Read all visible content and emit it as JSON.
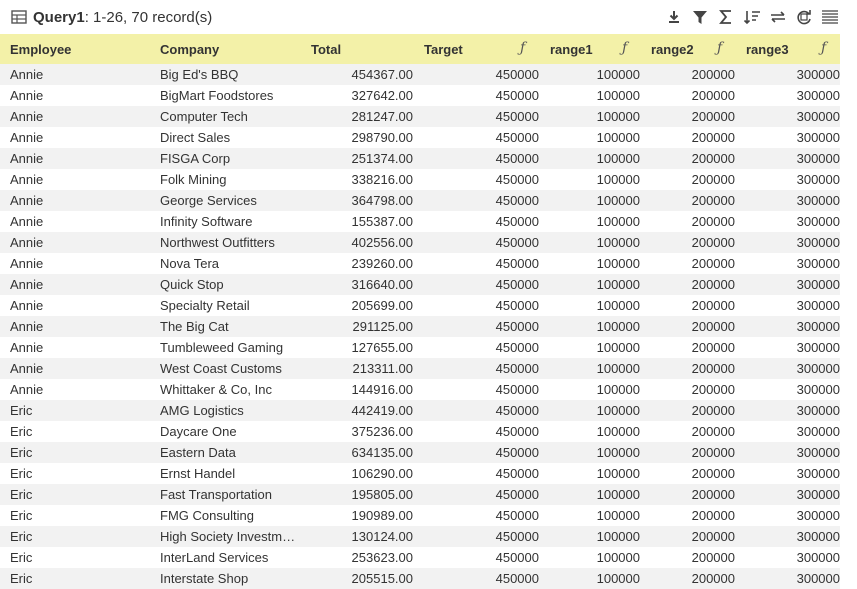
{
  "title": {
    "name": "Query1",
    "info": ": 1-26, 70 record(s)"
  },
  "toolbar": [
    {
      "name": "download-icon"
    },
    {
      "name": "filter-icon"
    },
    {
      "name": "sum-icon"
    },
    {
      "name": "sort-icon"
    },
    {
      "name": "swap-icon"
    },
    {
      "name": "refresh-icon"
    },
    {
      "name": "columns-icon"
    }
  ],
  "columns": {
    "employee": "Employee",
    "company": "Company",
    "total": "Total",
    "target": "Target",
    "range1": "range1",
    "range2": "range2",
    "range3": "range3",
    "fx": "ƒ"
  },
  "rows": [
    {
      "employee": "Annie",
      "company": "Big Ed's BBQ",
      "total": "454367.00",
      "target": "450000",
      "range1": "100000",
      "range2": "200000",
      "range3": "300000"
    },
    {
      "employee": "Annie",
      "company": "BigMart Foodstores",
      "total": "327642.00",
      "target": "450000",
      "range1": "100000",
      "range2": "200000",
      "range3": "300000"
    },
    {
      "employee": "Annie",
      "company": "Computer Tech",
      "total": "281247.00",
      "target": "450000",
      "range1": "100000",
      "range2": "200000",
      "range3": "300000"
    },
    {
      "employee": "Annie",
      "company": "Direct Sales",
      "total": "298790.00",
      "target": "450000",
      "range1": "100000",
      "range2": "200000",
      "range3": "300000"
    },
    {
      "employee": "Annie",
      "company": "FISGA Corp",
      "total": "251374.00",
      "target": "450000",
      "range1": "100000",
      "range2": "200000",
      "range3": "300000"
    },
    {
      "employee": "Annie",
      "company": "Folk Mining",
      "total": "338216.00",
      "target": "450000",
      "range1": "100000",
      "range2": "200000",
      "range3": "300000"
    },
    {
      "employee": "Annie",
      "company": "George Services",
      "total": "364798.00",
      "target": "450000",
      "range1": "100000",
      "range2": "200000",
      "range3": "300000"
    },
    {
      "employee": "Annie",
      "company": "Infinity Software",
      "total": "155387.00",
      "target": "450000",
      "range1": "100000",
      "range2": "200000",
      "range3": "300000"
    },
    {
      "employee": "Annie",
      "company": "Northwest Outfitters",
      "total": "402556.00",
      "target": "450000",
      "range1": "100000",
      "range2": "200000",
      "range3": "300000"
    },
    {
      "employee": "Annie",
      "company": "Nova Tera",
      "total": "239260.00",
      "target": "450000",
      "range1": "100000",
      "range2": "200000",
      "range3": "300000"
    },
    {
      "employee": "Annie",
      "company": "Quick Stop",
      "total": "316640.00",
      "target": "450000",
      "range1": "100000",
      "range2": "200000",
      "range3": "300000"
    },
    {
      "employee": "Annie",
      "company": "Specialty Retail",
      "total": "205699.00",
      "target": "450000",
      "range1": "100000",
      "range2": "200000",
      "range3": "300000"
    },
    {
      "employee": "Annie",
      "company": "The Big Cat",
      "total": "291125.00",
      "target": "450000",
      "range1": "100000",
      "range2": "200000",
      "range3": "300000"
    },
    {
      "employee": "Annie",
      "company": "Tumbleweed Gaming",
      "total": "127655.00",
      "target": "450000",
      "range1": "100000",
      "range2": "200000",
      "range3": "300000"
    },
    {
      "employee": "Annie",
      "company": "West Coast Customs",
      "total": "213311.00",
      "target": "450000",
      "range1": "100000",
      "range2": "200000",
      "range3": "300000"
    },
    {
      "employee": "Annie",
      "company": "Whittaker & Co, Inc",
      "total": "144916.00",
      "target": "450000",
      "range1": "100000",
      "range2": "200000",
      "range3": "300000"
    },
    {
      "employee": "Eric",
      "company": "AMG Logistics",
      "total": "442419.00",
      "target": "450000",
      "range1": "100000",
      "range2": "200000",
      "range3": "300000"
    },
    {
      "employee": "Eric",
      "company": "Daycare One",
      "total": "375236.00",
      "target": "450000",
      "range1": "100000",
      "range2": "200000",
      "range3": "300000"
    },
    {
      "employee": "Eric",
      "company": "Eastern Data",
      "total": "634135.00",
      "target": "450000",
      "range1": "100000",
      "range2": "200000",
      "range3": "300000"
    },
    {
      "employee": "Eric",
      "company": "Ernst Handel",
      "total": "106290.00",
      "target": "450000",
      "range1": "100000",
      "range2": "200000",
      "range3": "300000"
    },
    {
      "employee": "Eric",
      "company": "Fast Transportation",
      "total": "195805.00",
      "target": "450000",
      "range1": "100000",
      "range2": "200000",
      "range3": "300000"
    },
    {
      "employee": "Eric",
      "company": "FMG Consulting",
      "total": "190989.00",
      "target": "450000",
      "range1": "100000",
      "range2": "200000",
      "range3": "300000"
    },
    {
      "employee": "Eric",
      "company": "High Society Investme...",
      "total": "130124.00",
      "target": "450000",
      "range1": "100000",
      "range2": "200000",
      "range3": "300000"
    },
    {
      "employee": "Eric",
      "company": "InterLand Services",
      "total": "253623.00",
      "target": "450000",
      "range1": "100000",
      "range2": "200000",
      "range3": "300000"
    },
    {
      "employee": "Eric",
      "company": "Interstate Shop",
      "total": "205515.00",
      "target": "450000",
      "range1": "100000",
      "range2": "200000",
      "range3": "300000"
    }
  ]
}
